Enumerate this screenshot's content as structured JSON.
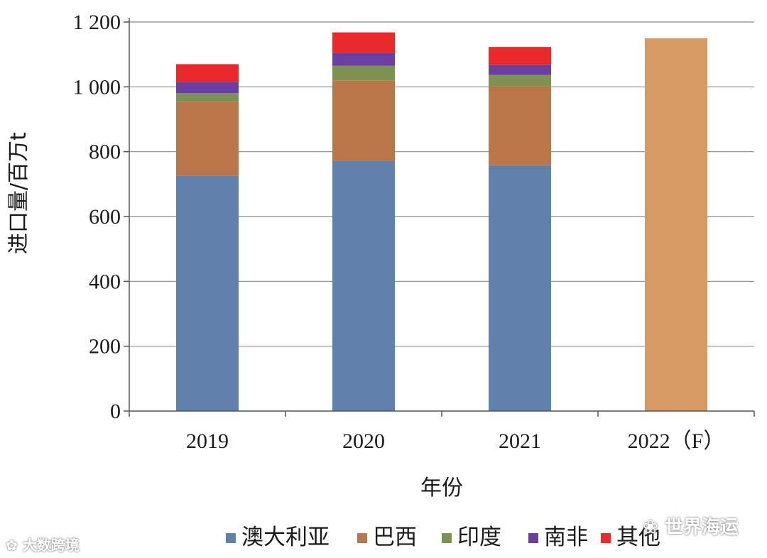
{
  "chart_data": {
    "type": "bar",
    "stacked": true,
    "categories": [
      "2019",
      "2020",
      "2021",
      "2022（F）"
    ],
    "ylabel": "进口量/百万t",
    "xlabel": "年份",
    "ylim": [
      0,
      1200
    ],
    "yticks": [
      0,
      200,
      400,
      600,
      800,
      1000,
      1200
    ],
    "ytick_labels": [
      "0",
      "200",
      "400",
      "600",
      "800",
      "1 000",
      "1 200"
    ],
    "grid": true,
    "legend_position": "bottom",
    "series": [
      {
        "name": "澳大利亚",
        "color": "#6181ad",
        "values": [
          725,
          772,
          758,
          null
        ]
      },
      {
        "name": "巴西",
        "color": "#b97649",
        "values": [
          228,
          248,
          244,
          null
        ]
      },
      {
        "name": "印度",
        "color": "#7d9152",
        "values": [
          28,
          45,
          35,
          null
        ]
      },
      {
        "name": "南非",
        "color": "#6b3fa0",
        "values": [
          33,
          40,
          32,
          null
        ]
      },
      {
        "name": "其他",
        "color": "#ea2a2a",
        "values": [
          56,
          63,
          54,
          null
        ]
      }
    ],
    "forecast": {
      "category": "2022（F）",
      "value": 1150,
      "color": "#d69b63"
    }
  },
  "watermarks": {
    "left": "大数跨境",
    "right": "世界海运"
  }
}
